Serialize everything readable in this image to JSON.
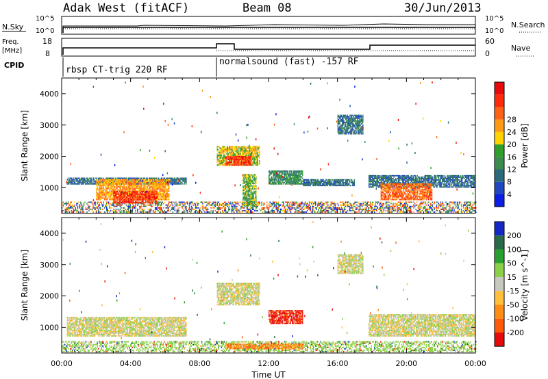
{
  "header": {
    "title": "Adak West (fitACF)",
    "beam": "Beam 08",
    "date": "30/Jun/2013"
  },
  "noise_panel": {
    "left_label": "N.Sky",
    "left_ticks": [
      "10^5",
      "10^0"
    ],
    "right_label": "N.Search",
    "right_ticks": [
      "10^5",
      "10^0"
    ]
  },
  "freq_panel": {
    "left_label_1": "Freq.",
    "left_label_2": "[MHz]",
    "left_ticks": [
      "18",
      "8"
    ],
    "right_label": "Nave",
    "right_ticks": [
      "60",
      "0"
    ]
  },
  "cpid_panel": {
    "label": "CPID",
    "programs": [
      "rbsp CT-trig 220 RF",
      "normalsound (fast) -157 RF"
    ]
  },
  "chart_data": [
    {
      "type": "heatmap",
      "name": "power",
      "xlabel": "Time UT",
      "ylabel": "Slant Range [km]",
      "x_ticks": [
        "00:00",
        "04:00",
        "08:00",
        "12:00",
        "16:00",
        "20:00",
        "00:00"
      ],
      "xlim": [
        0,
        24
      ],
      "ylim": [
        180,
        4500
      ],
      "y_ticks": [
        1000,
        2000,
        3000,
        4000
      ],
      "colorbar": {
        "label": "Power [dB]",
        "ticks": [
          "4",
          "8",
          "12",
          "16",
          "20",
          "24",
          "28"
        ],
        "colors": [
          "#0a1ee6",
          "#2048c0",
          "#2a6a7a",
          "#3c8c50",
          "#2ea02a",
          "#ffd200",
          "#ff9a14",
          "#ff6214",
          "#ff2a0a",
          "#e60a0a"
        ]
      },
      "regions": [
        {
          "t0": 0.3,
          "t1": 7.2,
          "r0": 1100,
          "r1": 1300,
          "level": 2
        },
        {
          "t0": 2.0,
          "t1": 6.2,
          "r0": 600,
          "r1": 1250,
          "level": 6
        },
        {
          "t0": 3.0,
          "t1": 5.5,
          "r0": 500,
          "r1": 900,
          "level": 8
        },
        {
          "t0": 9.0,
          "t1": 11.5,
          "r0": 1700,
          "r1": 2300,
          "level": 5
        },
        {
          "t0": 9.5,
          "t1": 11.0,
          "r0": 1700,
          "r1": 2000,
          "level": 8
        },
        {
          "t0": 10.5,
          "t1": 11.3,
          "r0": 400,
          "r1": 1400,
          "level": 4
        },
        {
          "t0": 12.0,
          "t1": 14.0,
          "r0": 1100,
          "r1": 1550,
          "level": 3
        },
        {
          "t0": 14.0,
          "t1": 17.0,
          "r0": 1050,
          "r1": 1250,
          "level": 2
        },
        {
          "t0": 16.0,
          "t1": 17.5,
          "r0": 2700,
          "r1": 3300,
          "level": 2
        },
        {
          "t0": 17.8,
          "t1": 24.0,
          "r0": 1000,
          "r1": 1400,
          "level": 2
        },
        {
          "t0": 18.5,
          "t1": 21.5,
          "r0": 600,
          "r1": 1100,
          "level": 7
        }
      ]
    },
    {
      "type": "heatmap",
      "name": "velocity",
      "xlabel": "Time UT",
      "ylabel": "Slant Range [km]",
      "x_ticks": [
        "00:00",
        "04:00",
        "08:00",
        "12:00",
        "16:00",
        "20:00",
        "00:00"
      ],
      "xlim": [
        0,
        24
      ],
      "ylim": [
        180,
        4500
      ],
      "y_ticks": [
        1000,
        2000,
        3000,
        4000
      ],
      "colorbar": {
        "label": "Velocity [m s^-1]",
        "ticks": [
          "200",
          "100",
          "50",
          "15",
          "-15",
          "-50",
          "-100",
          "-200"
        ],
        "colors": [
          "#1428c8",
          "#2a6a48",
          "#28a030",
          "#8ad048",
          "#c8c8c0",
          "#ffbe3c",
          "#ff8c14",
          "#ff5a0a",
          "#e60a0a"
        ]
      },
      "regions": [
        {
          "t0": 0.3,
          "t1": 7.2,
          "r0": 700,
          "r1": 1300,
          "level": 4
        },
        {
          "t0": 9.0,
          "t1": 11.5,
          "r0": 1700,
          "r1": 2400,
          "level": 4
        },
        {
          "t0": 12.0,
          "t1": 14.0,
          "r0": 1100,
          "r1": 1550,
          "level": 8
        },
        {
          "t0": 16.0,
          "t1": 17.5,
          "r0": 2700,
          "r1": 3300,
          "level": 4
        },
        {
          "t0": 17.8,
          "t1": 24.0,
          "r0": 700,
          "r1": 1400,
          "level": 4
        },
        {
          "t0": 9.5,
          "t1": 14.0,
          "r0": 300,
          "r1": 450,
          "level": 6
        }
      ]
    }
  ]
}
